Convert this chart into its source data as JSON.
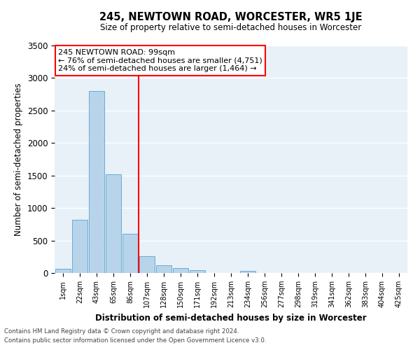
{
  "title": "245, NEWTOWN ROAD, WORCESTER, WR5 1JE",
  "subtitle": "Size of property relative to semi-detached houses in Worcester",
  "xlabel": "Distribution of semi-detached houses by size in Worcester",
  "ylabel": "Number of semi-detached properties",
  "bar_color": "#b8d4ea",
  "bar_edge_color": "#6aaad4",
  "background_color": "#e8f1f8",
  "grid_color": "#ffffff",
  "categories": [
    "1sqm",
    "22sqm",
    "43sqm",
    "65sqm",
    "86sqm",
    "107sqm",
    "128sqm",
    "150sqm",
    "171sqm",
    "192sqm",
    "213sqm",
    "234sqm",
    "256sqm",
    "277sqm",
    "298sqm",
    "319sqm",
    "341sqm",
    "362sqm",
    "383sqm",
    "404sqm",
    "425sqm"
  ],
  "bar_heights": [
    60,
    820,
    2800,
    1520,
    600,
    260,
    120,
    80,
    40,
    0,
    0,
    30,
    0,
    0,
    0,
    0,
    0,
    0,
    0,
    0,
    0
  ],
  "ylim": [
    0,
    3500
  ],
  "yticks": [
    0,
    500,
    1000,
    1500,
    2000,
    2500,
    3000,
    3500
  ],
  "property_line_x": 4.5,
  "property_line_label": "245 NEWTOWN ROAD: 99sqm",
  "annotation_line1": "← 76% of semi-detached houses are smaller (4,751)",
  "annotation_line2": "24% of semi-detached houses are larger (1,464) →",
  "footnote1": "Contains HM Land Registry data © Crown copyright and database right 2024.",
  "footnote2": "Contains public sector information licensed under the Open Government Licence v3.0."
}
